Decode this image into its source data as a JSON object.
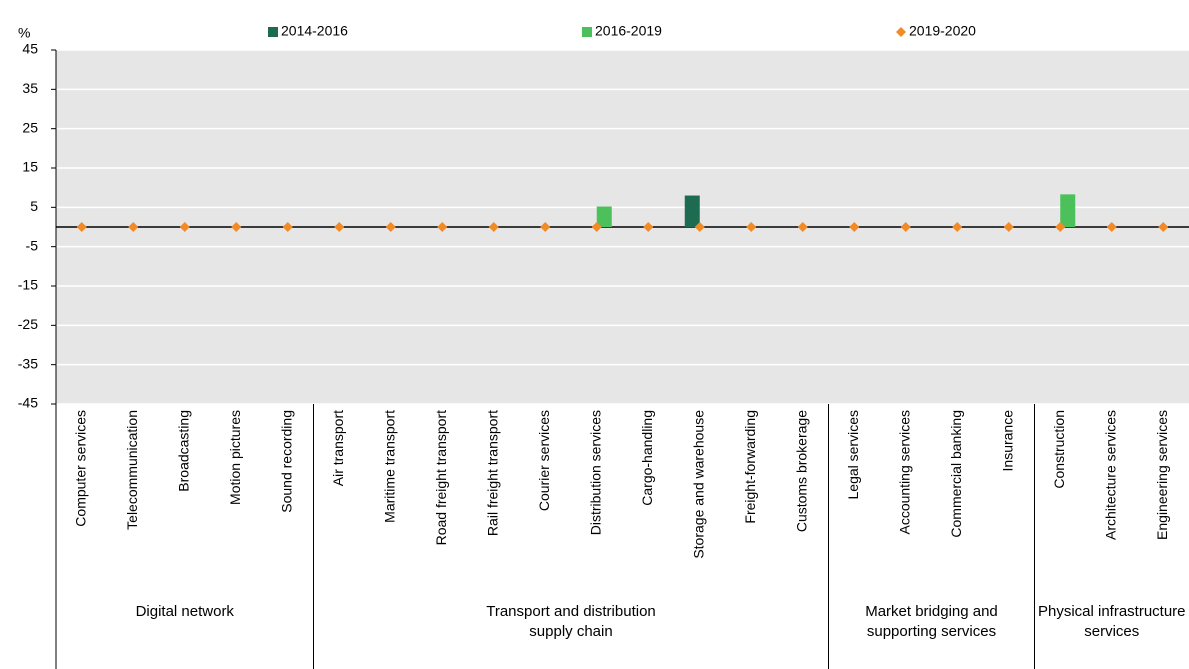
{
  "chart_data": {
    "type": "bar",
    "y_label": "%",
    "groups": [
      {
        "name": "Digital network",
        "categories": [
          "Computer services",
          "Telecommunication",
          "Broadcasting",
          "Motion pictures",
          "Sound recording"
        ]
      },
      {
        "name": "Transport and distribution supply chain",
        "categories": [
          "Air transport",
          "Maritime transport",
          "Road freight transport",
          "Rail freight transport",
          "Courier services",
          "Distribution services",
          "Cargo-handling",
          "Storage and warehouse",
          "Freight-forwarding",
          "Customs brokerage"
        ]
      },
      {
        "name": "Market bridging and supporting services",
        "categories": [
          "Legal services",
          "Accounting services",
          "Commercial banking",
          "Insurance"
        ]
      },
      {
        "name": "Physical infrastructure services",
        "categories": [
          "Construction",
          "Architecture services",
          "Engineering services"
        ]
      }
    ],
    "series": [
      {
        "name": "2014-2016",
        "kind": "bar",
        "color": "#1d6b50",
        "values": [
          0,
          0,
          0,
          0,
          0,
          0,
          0,
          0,
          0,
          0,
          0,
          0,
          8,
          0,
          0,
          0,
          0,
          0,
          0,
          0,
          0,
          0
        ]
      },
      {
        "name": "2016-2019",
        "kind": "bar",
        "color": "#4cc05a",
        "values": [
          0,
          0,
          0,
          0,
          0,
          0,
          0,
          0,
          0,
          0,
          5.2,
          0,
          0,
          0,
          0,
          0,
          0,
          0,
          0,
          8.3,
          0,
          0
        ]
      },
      {
        "name": "2019-2020",
        "kind": "point",
        "color": "#f28a26",
        "values": [
          0,
          0,
          0,
          0,
          0,
          0,
          0,
          0,
          0,
          0,
          0,
          0,
          0,
          0,
          0,
          0,
          0,
          0,
          0,
          0,
          0,
          0
        ]
      }
    ],
    "ylim": [
      -45,
      45
    ],
    "yticks": [
      -45,
      -35,
      -25,
      -15,
      -5,
      5,
      15,
      25,
      35,
      45
    ],
    "grid": true
  }
}
